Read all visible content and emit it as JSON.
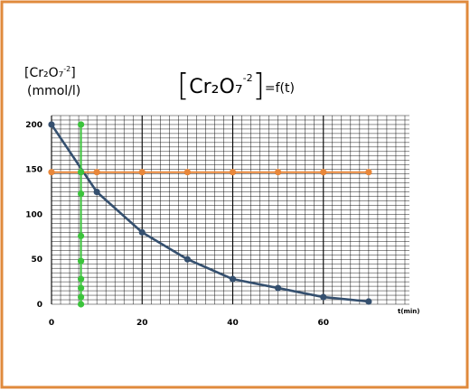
{
  "chart_data": {
    "type": "line",
    "title_main": "Cr₂O₇",
    "title_charge": "-2",
    "title_suffix": "=f(t)",
    "ylabel_line1_base": "[Cr₂O₇",
    "ylabel_line1_charge": "-2",
    "ylabel_line1_close": "]",
    "ylabel_line2": "(mmol/l)",
    "xlabel": "t(min)",
    "xlim": [
      0,
      79
    ],
    "ylim": [
      0,
      210
    ],
    "x_ticks": [
      0,
      20,
      40,
      60
    ],
    "y_ticks": [
      0,
      50,
      100,
      150,
      200
    ],
    "grid": true,
    "colors": {
      "frame": "#e08a3c",
      "decay": "#35506f",
      "constant": "#e8873a",
      "vertical": "#3cc43c",
      "grid_minor": "#000000",
      "grid_major": "#000000"
    },
    "series": [
      {
        "color": "#35506f",
        "x": [
          0,
          10,
          20,
          30,
          40,
          50,
          60,
          70
        ],
        "y": [
          200,
          125,
          80,
          50,
          28,
          18,
          8,
          3
        ]
      },
      {
        "color": "#e8873a",
        "x": [
          0,
          10,
          20,
          30,
          40,
          50,
          60,
          70
        ],
        "y": [
          147,
          147,
          147,
          147,
          147,
          147,
          147,
          147
        ]
      },
      {
        "color": "#3cc43c",
        "x": [
          6.5,
          6.5,
          6.5,
          6.5,
          6.5,
          6.5,
          6.5,
          6.5,
          6.5
        ],
        "y": [
          200,
          123,
          76,
          48,
          28,
          18,
          8,
          0,
          147
        ]
      }
    ]
  }
}
